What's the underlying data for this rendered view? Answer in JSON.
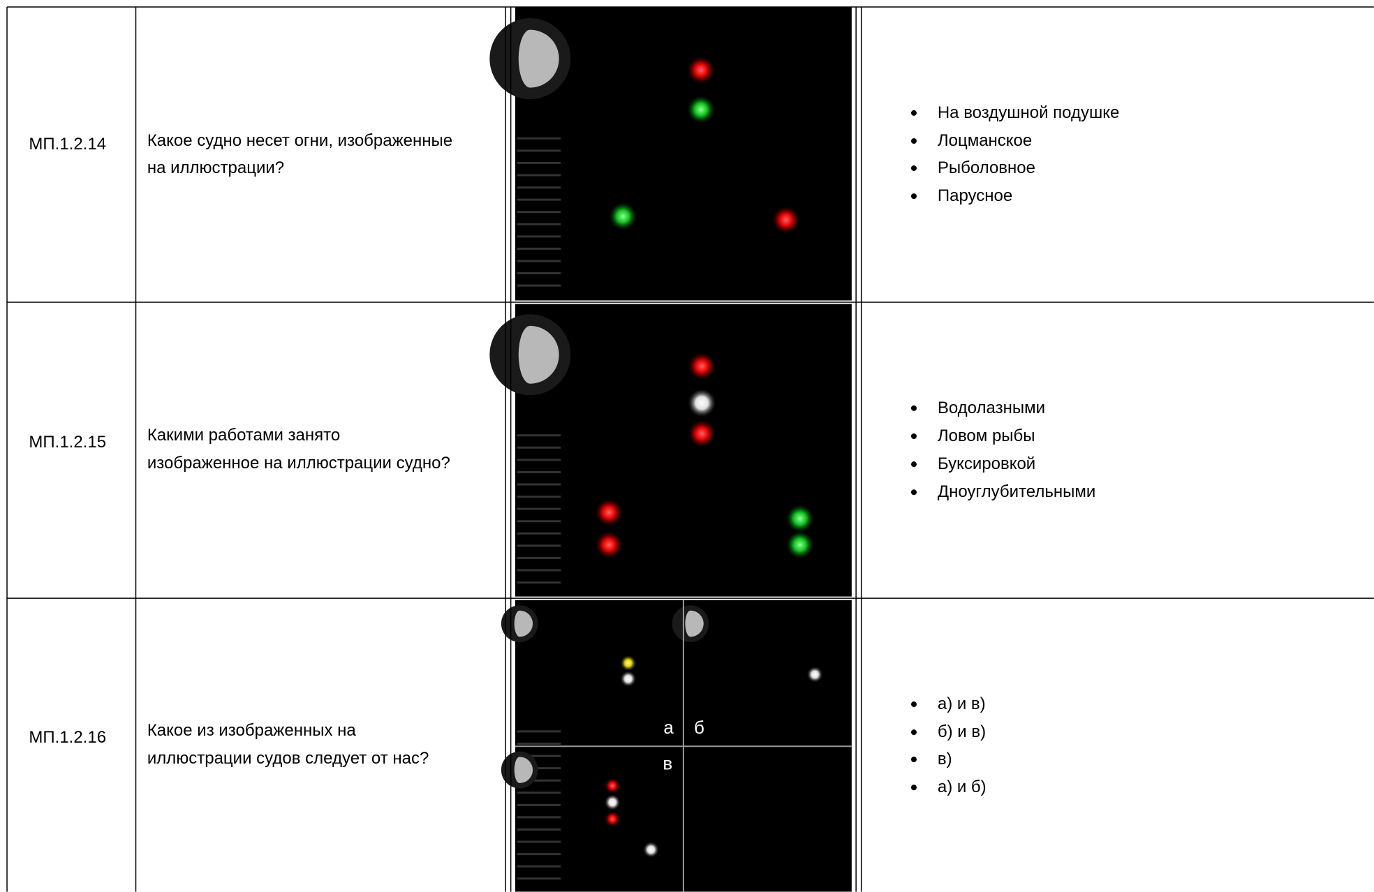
{
  "table": {
    "rows": [
      {
        "id": "МП.1.2.14",
        "question": [
          "Какое судно несет огни, изображенные",
          "на иллюстрации?"
        ],
        "options": [
          "На воздушной подушке",
          "Лоцманское",
          "Рыболовное",
          "Парусное"
        ]
      },
      {
        "id": "МП.1.2.15",
        "question": [
          "Какими работами занято",
          "изображенное на иллюстрации судно?"
        ],
        "options": [
          "Водолазными",
          "Ловом рыбы",
          "Буксировкой",
          "Дноуглубительными"
        ]
      },
      {
        "id": "МП.1.2.16",
        "question": [
          "Какое из изображенных на",
          "иллюстрации судов следует от нас?"
        ],
        "options": [
          "а) и в)",
          "б) и в)",
          "в)",
          "а) и б)"
        ],
        "image_labels": [
          "а",
          "б",
          "в"
        ]
      }
    ]
  }
}
